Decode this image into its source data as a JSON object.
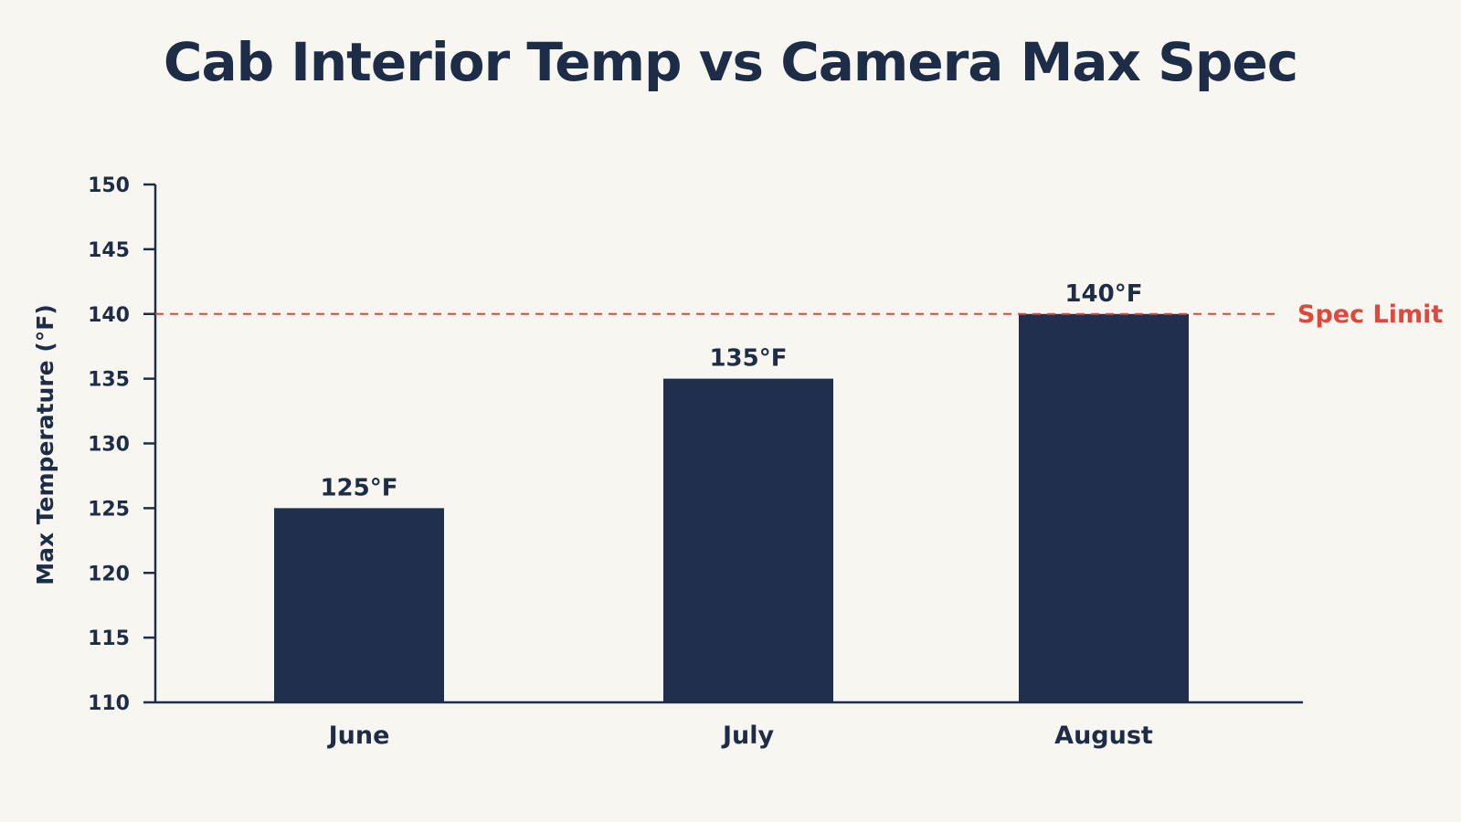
{
  "chart_data": {
    "type": "bar",
    "title": "Cab Interior Temp vs Camera Max Spec",
    "xlabel": "",
    "ylabel": "Max Temperature (°F)",
    "categories": [
      "June",
      "July",
      "August"
    ],
    "values": [
      125,
      135,
      140
    ],
    "data_labels": [
      "125°F",
      "135°F",
      "140°F"
    ],
    "ylim": [
      110,
      150
    ],
    "yticks": [
      110,
      115,
      120,
      125,
      130,
      135,
      140,
      145,
      150
    ],
    "ytick_labels": [
      "110",
      "115",
      "120",
      "125",
      "130",
      "135",
      "140",
      "145",
      "150"
    ],
    "reference_line": {
      "value": 140,
      "label": "Spec Limit",
      "style": "dashed"
    },
    "grid": false,
    "legend": "none"
  },
  "colors": {
    "background": "#f8f6f0",
    "bar": "#1f2f4d",
    "text": "#1e2d47",
    "axis": "#1e2d47",
    "spec_limit": "#e0483e"
  }
}
